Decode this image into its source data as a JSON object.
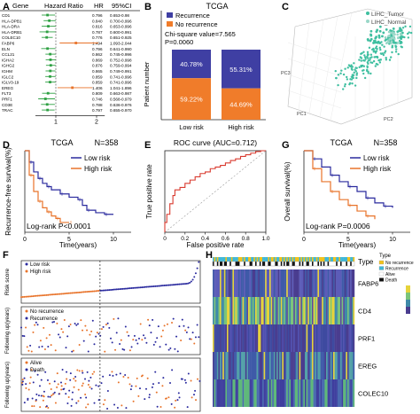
{
  "panel_labels": [
    "A",
    "B",
    "C",
    "D",
    "E",
    "G",
    "F",
    "H"
  ],
  "panel_a": {
    "headers": [
      "Gene",
      "Hazard Ratio",
      "HR",
      "95%CI"
    ],
    "rows": [
      {
        "gene": "CD1",
        "hr": "0.796",
        "ci": "0.653-0.98",
        "est": 0.796,
        "lo": 0.653,
        "hi": 0.98
      },
      {
        "gene": "HLA-DPB1",
        "hr": "0.840",
        "ci": "0.700-0.996",
        "est": 0.84,
        "lo": 0.7,
        "hi": 0.996
      },
      {
        "gene": "HLA-DRA",
        "hr": "0.816",
        "ci": "0.653-0.996",
        "est": 0.816,
        "lo": 0.653,
        "hi": 0.996
      },
      {
        "gene": "HLA-DRB1",
        "hr": "0.787",
        "ci": "0.600-0.991",
        "est": 0.787,
        "lo": 0.6,
        "hi": 0.991
      },
      {
        "gene": "COLEC10",
        "hr": "0.776",
        "ci": "0.651-0.925",
        "est": 0.776,
        "lo": 0.651,
        "hi": 0.925
      },
      {
        "gene": "FABP6",
        "hr": "1.494",
        "ci": "1.093-2.044",
        "est": 1.494,
        "lo": 1.093,
        "hi": 2.044
      },
      {
        "gene": "ELN",
        "hr": "0.796",
        "ci": "0.641-0.990",
        "est": 0.796,
        "lo": 0.641,
        "hi": 0.99
      },
      {
        "gene": "CCL21",
        "hr": "0.862",
        "ci": "0.745-0.996",
        "est": 0.862,
        "lo": 0.745,
        "hi": 0.996
      },
      {
        "gene": "IGHA2",
        "hr": "0.869",
        "ci": "0.752-0.998",
        "est": 0.869,
        "lo": 0.752,
        "hi": 0.998
      },
      {
        "gene": "IGHG2",
        "hr": "0.876",
        "ci": "0.759-0.994",
        "est": 0.876,
        "lo": 0.759,
        "hi": 0.994
      },
      {
        "gene": "IGHM",
        "hr": "0.865",
        "ci": "0.749-0.991",
        "est": 0.865,
        "lo": 0.749,
        "hi": 0.991
      },
      {
        "gene": "IGLC2",
        "hr": "0.859",
        "ci": "0.741-0.996",
        "est": 0.859,
        "lo": 0.741,
        "hi": 0.996
      },
      {
        "gene": "IGLV3-19",
        "hr": "0.859",
        "ci": "0.741-0.996",
        "est": 0.859,
        "lo": 0.741,
        "hi": 0.996
      },
      {
        "gene": "EREG",
        "hr": "1.406",
        "ci": "1.041-1.896",
        "est": 1.406,
        "lo": 1.041,
        "hi": 1.896
      },
      {
        "gene": "FLT3",
        "hr": "0.809",
        "ci": "0.663-0.987",
        "est": 0.809,
        "lo": 0.663,
        "hi": 0.987
      },
      {
        "gene": "PRF1",
        "hr": "0.746",
        "ci": "0.568-0.979",
        "est": 0.746,
        "lo": 0.568,
        "hi": 0.979
      },
      {
        "gene": "CD3E",
        "hr": "0.788",
        "ci": "0.636-0.976",
        "est": 0.788,
        "lo": 0.636,
        "hi": 0.976
      },
      {
        "gene": "TRAC",
        "hr": "0.797",
        "ci": "0.655-0.970",
        "est": 0.797,
        "lo": 0.655,
        "hi": 0.97
      }
    ],
    "axis_ticks": [
      "1",
      "2"
    ]
  },
  "chart_data": [
    {
      "type": "bar",
      "title": "TCGA",
      "annotation": "Chi-square value=7.565\nP=0.0060",
      "categories": [
        "Low risk",
        "High risk"
      ],
      "series": [
        {
          "name": "No recurrence",
          "values": [
            59.22,
            44.69
          ],
          "labels": [
            "59.22%",
            "44.69%"
          ]
        },
        {
          "name": "Recurrence",
          "values": [
            40.78,
            55.31
          ],
          "labels": [
            "40.78%",
            "55.31%"
          ]
        }
      ],
      "ylabel": "Patient number",
      "colors": {
        "No recurrence": "#f07c2a",
        "Recurrence": "#3f3fa3"
      }
    },
    {
      "type": "scatter",
      "legend": [
        "LIHC_Tumor",
        "LIHC_Normal"
      ],
      "axis_labels": [
        "PC1",
        "PC2",
        "PC3"
      ],
      "colors": {
        "LIHC_Tumor": "#3fbfa0",
        "LIHC_Normal": "#9ad7c8"
      }
    },
    {
      "type": "line",
      "title": "TCGA",
      "n_label": "N=358",
      "legend": [
        "Low risk",
        "High risk"
      ],
      "annotation": "Log-rank P<0.0001",
      "ylabel": "Recurrence-free survival(%)",
      "xlabel": "Time(years)",
      "xticks": [
        "0",
        "5",
        "10"
      ],
      "xlim": [
        0,
        12
      ],
      "series": [
        {
          "name": "Low risk",
          "color": "#2a2a9e",
          "x": [
            0,
            0.5,
            1,
            1.5,
            2,
            2.5,
            3,
            4,
            5,
            6,
            6.5,
            7,
            8,
            9,
            10
          ],
          "y": [
            1,
            0.86,
            0.74,
            0.66,
            0.6,
            0.56,
            0.52,
            0.47,
            0.43,
            0.4,
            0.33,
            0.27,
            0.24,
            0.22,
            0.22
          ]
        },
        {
          "name": "High risk",
          "color": "#e8732a",
          "x": [
            0,
            0.5,
            1,
            1.5,
            2,
            2.5,
            3,
            3.5,
            4,
            5
          ],
          "y": [
            1,
            0.7,
            0.5,
            0.38,
            0.3,
            0.25,
            0.2,
            0.17,
            0.12,
            0.12
          ]
        }
      ]
    },
    {
      "type": "line",
      "title": "ROC curve (AUC=0.712)",
      "ylabel": "True positive rate",
      "xlabel": "False positive rate",
      "xticks": [
        "0",
        "0.2",
        "0.4",
        "0.6",
        "0.8",
        "1.0"
      ],
      "xlim": [
        0,
        1
      ],
      "ylim": [
        0,
        1
      ],
      "series": [
        {
          "name": "ROC",
          "color": "#d93a2f",
          "x": [
            0,
            0.02,
            0.05,
            0.08,
            0.1,
            0.15,
            0.2,
            0.25,
            0.3,
            0.35,
            0.4,
            0.45,
            0.5,
            0.55,
            0.6,
            0.65,
            0.7,
            0.75,
            0.8,
            0.85,
            0.9,
            0.95,
            1
          ],
          "y": [
            0,
            0.12,
            0.22,
            0.35,
            0.45,
            0.52,
            0.55,
            0.6,
            0.64,
            0.68,
            0.72,
            0.74,
            0.78,
            0.8,
            0.82,
            0.85,
            0.88,
            0.9,
            0.93,
            0.95,
            0.97,
            0.99,
            1
          ]
        }
      ]
    },
    {
      "type": "line",
      "title": "TCGA",
      "n_label": "N=358",
      "legend": [
        "Low risk",
        "High risk"
      ],
      "annotation": "Log-rank P=0.0006",
      "ylabel": "Overall survival(%)",
      "xlabel": "Time(years)",
      "xticks": [
        "0",
        "5",
        "10"
      ],
      "xlim": [
        0,
        12
      ],
      "series": [
        {
          "name": "Low risk",
          "color": "#2a2a9e",
          "x": [
            0,
            1,
            2,
            3,
            4,
            5,
            6,
            7,
            8,
            9,
            10
          ],
          "y": [
            1,
            0.9,
            0.8,
            0.7,
            0.62,
            0.56,
            0.5,
            0.42,
            0.36,
            0.32,
            0.3
          ]
        },
        {
          "name": "High risk",
          "color": "#e8732a",
          "x": [
            0,
            1,
            2,
            3,
            4,
            5,
            6,
            7,
            8
          ],
          "y": [
            1,
            0.78,
            0.62,
            0.5,
            0.4,
            0.33,
            0.26,
            0.2,
            0.16
          ]
        }
      ]
    }
  ],
  "panel_f": {
    "top_legend": [
      "Low risk",
      "High risk"
    ],
    "top_ylabel": "Risk score",
    "mid_legend": [
      "No recurrence",
      "Recurrence"
    ],
    "mid_ylabel": "Following up(years)",
    "bot_legend": [
      "Alive",
      "Death"
    ],
    "bot_ylabel": "Following up(years)"
  },
  "panel_h": {
    "type_label": "Type",
    "legend_title": "Type",
    "legend": [
      "No recurrence",
      "Recurrence",
      "Alive",
      "Death"
    ],
    "genes": [
      "FABP6",
      "CD4",
      "PRF1",
      "EREG",
      "COLEC10"
    ]
  }
}
